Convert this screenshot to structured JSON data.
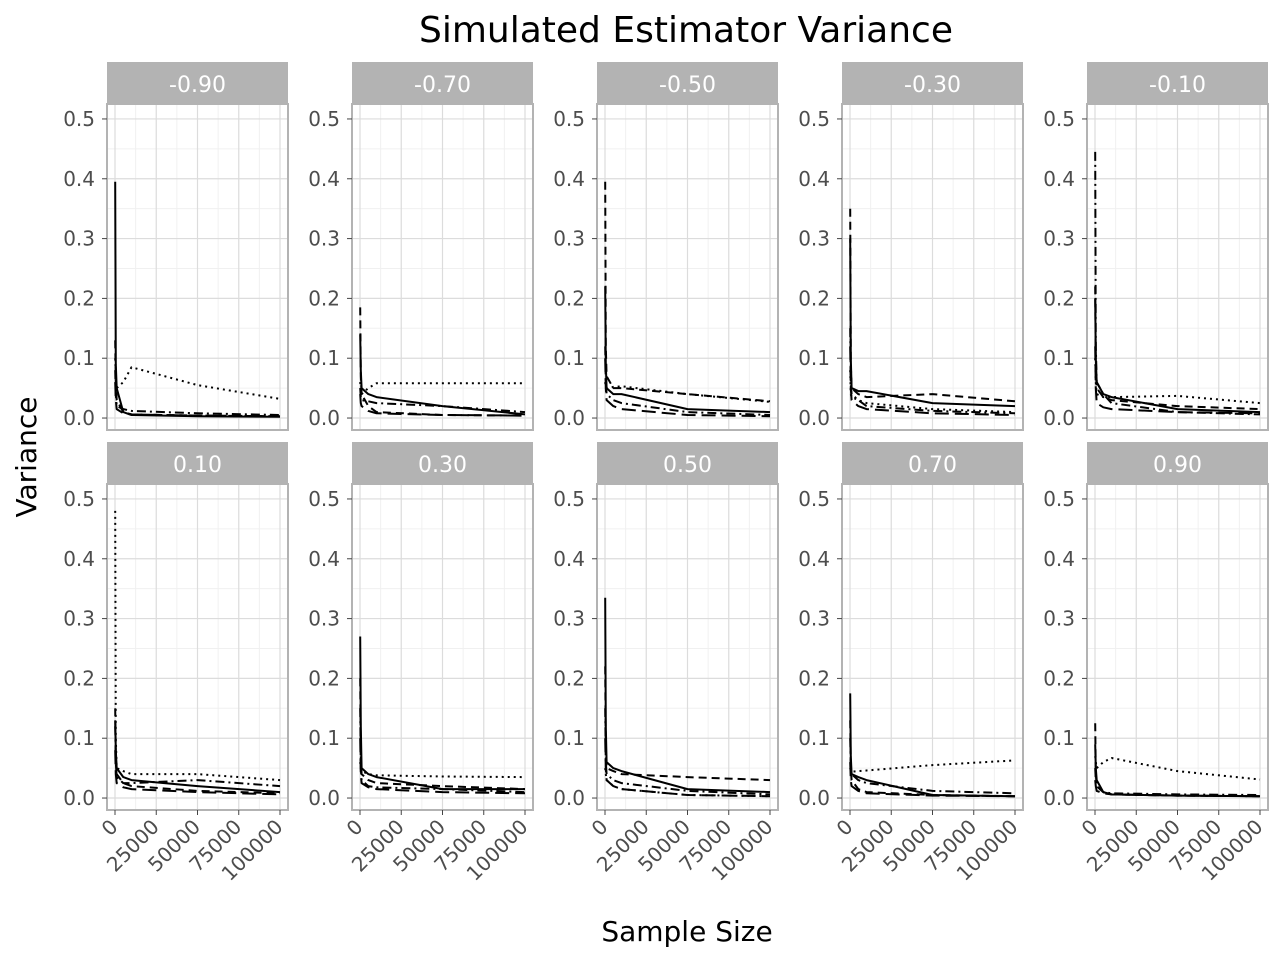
{
  "chart_data": {
    "type": "line",
    "title": "Simulated Estimator Variance",
    "xlabel": "Sample Size",
    "ylabel": "Variance",
    "xlim": [
      0,
      100000
    ],
    "ylim": [
      0,
      0.5
    ],
    "x_ticks": [
      "0",
      "25000",
      "50000",
      "75000",
      "100000"
    ],
    "y_ticks": [
      "0.0",
      "0.1",
      "0.2",
      "0.3",
      "0.4",
      "0.5"
    ],
    "grid": true,
    "legend": "none",
    "x": [
      100,
      500,
      1000,
      5000,
      10000,
      50000,
      100000
    ],
    "line_styles": [
      "solid",
      "dashed",
      "dotted",
      "dashdot",
      "longdash"
    ],
    "panels": [
      {
        "label": "-0.90",
        "series": [
          {
            "style": "solid",
            "values": [
              0.395,
              0.09,
              0.05,
              0.01,
              0.005,
              0.003,
              0.002
            ]
          },
          {
            "style": "dashed",
            "values": [
              0.13,
              0.06,
              0.03,
              0.01,
              0.006,
              0.004,
              0.003
            ]
          },
          {
            "style": "dotted",
            "values": [
              0.1,
              0.07,
              0.05,
              0.06,
              0.085,
              0.055,
              0.032
            ]
          },
          {
            "style": "dashdot",
            "values": [
              0.08,
              0.04,
              0.02,
              0.015,
              0.012,
              0.008,
              0.005
            ]
          },
          {
            "style": "longdash",
            "values": [
              0.06,
              0.03,
              0.015,
              0.008,
              0.006,
              0.004,
              0.003
            ]
          }
        ]
      },
      {
        "label": "-0.70",
        "series": [
          {
            "style": "solid",
            "values": [
              0.14,
              0.08,
              0.05,
              0.04,
              0.035,
              0.02,
              0.006
            ]
          },
          {
            "style": "dashed",
            "values": [
              0.185,
              0.07,
              0.04,
              0.02,
              0.01,
              0.005,
              0.004
            ]
          },
          {
            "style": "dotted",
            "values": [
              0.06,
              0.045,
              0.04,
              0.05,
              0.058,
              0.058,
              0.058
            ]
          },
          {
            "style": "dashdot",
            "values": [
              0.05,
              0.035,
              0.03,
              0.028,
              0.025,
              0.02,
              0.01
            ]
          },
          {
            "style": "longdash",
            "values": [
              0.04,
              0.025,
              0.02,
              0.012,
              0.008,
              0.005,
              0.004
            ]
          }
        ]
      },
      {
        "label": "-0.50",
        "series": [
          {
            "style": "solid",
            "values": [
              0.22,
              0.09,
              0.05,
              0.04,
              0.04,
              0.015,
              0.01
            ]
          },
          {
            "style": "dashed",
            "values": [
              0.395,
              0.12,
              0.07,
              0.05,
              0.05,
              0.04,
              0.028
            ]
          },
          {
            "style": "dotted",
            "values": [
              0.06,
              0.05,
              0.05,
              0.052,
              0.053,
              0.04,
              0.027
            ]
          },
          {
            "style": "dashdot",
            "values": [
              0.12,
              0.06,
              0.04,
              0.03,
              0.025,
              0.01,
              0.005
            ]
          },
          {
            "style": "longdash",
            "values": [
              0.1,
              0.05,
              0.03,
              0.02,
              0.015,
              0.005,
              0.003
            ]
          }
        ]
      },
      {
        "label": "-0.30",
        "series": [
          {
            "style": "solid",
            "values": [
              0.3,
              0.1,
              0.05,
              0.045,
              0.045,
              0.025,
              0.02
            ]
          },
          {
            "style": "dashed",
            "values": [
              0.35,
              0.09,
              0.05,
              0.04,
              0.035,
              0.04,
              0.028
            ]
          },
          {
            "style": "dotted",
            "values": [
              0.08,
              0.04,
              0.035,
              0.03,
              0.025,
              0.015,
              0.01
            ]
          },
          {
            "style": "dashdot",
            "values": [
              0.15,
              0.06,
              0.04,
              0.03,
              0.02,
              0.012,
              0.008
            ]
          },
          {
            "style": "longdash",
            "values": [
              0.12,
              0.05,
              0.03,
              0.02,
              0.015,
              0.008,
              0.005
            ]
          }
        ]
      },
      {
        "label": "-0.10",
        "series": [
          {
            "style": "solid",
            "values": [
              0.2,
              0.1,
              0.06,
              0.04,
              0.035,
              0.015,
              0.01
            ]
          },
          {
            "style": "dashed",
            "values": [
              0.22,
              0.08,
              0.05,
              0.035,
              0.03,
              0.02,
              0.015
            ]
          },
          {
            "style": "dotted",
            "values": [
              0.1,
              0.06,
              0.04,
              0.035,
              0.035,
              0.037,
              0.025
            ]
          },
          {
            "style": "dashdot",
            "values": [
              0.445,
              0.12,
              0.06,
              0.04,
              0.025,
              0.01,
              0.006
            ]
          },
          {
            "style": "longdash",
            "values": [
              0.12,
              0.05,
              0.025,
              0.018,
              0.015,
              0.01,
              0.008
            ]
          }
        ]
      },
      {
        "label": "0.10",
        "series": [
          {
            "style": "solid",
            "values": [
              0.13,
              0.08,
              0.05,
              0.035,
              0.03,
              0.02,
              0.01
            ]
          },
          {
            "style": "dashed",
            "values": [
              0.15,
              0.07,
              0.04,
              0.025,
              0.02,
              0.012,
              0.008
            ]
          },
          {
            "style": "dotted",
            "values": [
              0.48,
              0.1,
              0.05,
              0.045,
              0.04,
              0.04,
              0.03
            ]
          },
          {
            "style": "dashdot",
            "values": [
              0.12,
              0.06,
              0.035,
              0.025,
              0.025,
              0.03,
              0.02
            ]
          },
          {
            "style": "longdash",
            "values": [
              0.08,
              0.04,
              0.025,
              0.018,
              0.015,
              0.01,
              0.006
            ]
          }
        ]
      },
      {
        "label": "0.30",
        "series": [
          {
            "style": "solid",
            "values": [
              0.27,
              0.12,
              0.05,
              0.04,
              0.035,
              0.015,
              0.015
            ]
          },
          {
            "style": "dashed",
            "values": [
              0.2,
              0.07,
              0.04,
              0.03,
              0.025,
              0.02,
              0.015
            ]
          },
          {
            "style": "dotted",
            "values": [
              0.06,
              0.05,
              0.045,
              0.04,
              0.038,
              0.036,
              0.035
            ]
          },
          {
            "style": "dashdot",
            "values": [
              0.15,
              0.05,
              0.03,
              0.02,
              0.018,
              0.015,
              0.01
            ]
          },
          {
            "style": "longdash",
            "values": [
              0.1,
              0.04,
              0.025,
              0.018,
              0.015,
              0.01,
              0.008
            ]
          }
        ]
      },
      {
        "label": "0.50",
        "series": [
          {
            "style": "solid",
            "values": [
              0.335,
              0.12,
              0.06,
              0.05,
              0.045,
              0.015,
              0.01
            ]
          },
          {
            "style": "dashed",
            "values": [
              0.22,
              0.08,
              0.05,
              0.045,
              0.04,
              0.035,
              0.03
            ]
          },
          {
            "style": "dotted",
            "values": [
              0.05,
              0.04,
              0.03,
              0.02,
              0.015,
              0.005,
              0.003
            ]
          },
          {
            "style": "dashdot",
            "values": [
              0.15,
              0.06,
              0.04,
              0.03,
              0.025,
              0.012,
              0.006
            ]
          },
          {
            "style": "longdash",
            "values": [
              0.1,
              0.05,
              0.03,
              0.02,
              0.015,
              0.005,
              0.003
            ]
          }
        ]
      },
      {
        "label": "0.70",
        "series": [
          {
            "style": "solid",
            "values": [
              0.175,
              0.07,
              0.04,
              0.035,
              0.03,
              0.005,
              0.003
            ]
          },
          {
            "style": "dashed",
            "values": [
              0.13,
              0.05,
              0.03,
              0.015,
              0.01,
              0.005,
              0.003
            ]
          },
          {
            "style": "dotted",
            "values": [
              0.05,
              0.045,
              0.044,
              0.045,
              0.046,
              0.055,
              0.063
            ]
          },
          {
            "style": "dashdot",
            "values": [
              0.1,
              0.05,
              0.04,
              0.03,
              0.025,
              0.012,
              0.008
            ]
          },
          {
            "style": "longdash",
            "values": [
              0.06,
              0.03,
              0.02,
              0.012,
              0.008,
              0.004,
              0.003
            ]
          }
        ]
      },
      {
        "label": "0.90",
        "series": [
          {
            "style": "solid",
            "values": [
              0.09,
              0.05,
              0.03,
              0.01,
              0.006,
              0.004,
              0.003
            ]
          },
          {
            "style": "dashed",
            "values": [
              0.125,
              0.04,
              0.02,
              0.01,
              0.006,
              0.004,
              0.003
            ]
          },
          {
            "style": "dotted",
            "values": [
              0.07,
              0.06,
              0.05,
              0.06,
              0.067,
              0.045,
              0.031
            ]
          },
          {
            "style": "dashdot",
            "values": [
              0.05,
              0.03,
              0.02,
              0.01,
              0.008,
              0.006,
              0.005
            ]
          },
          {
            "style": "longdash",
            "values": [
              0.03,
              0.02,
              0.012,
              0.008,
              0.006,
              0.004,
              0.003
            ]
          }
        ]
      }
    ]
  }
}
